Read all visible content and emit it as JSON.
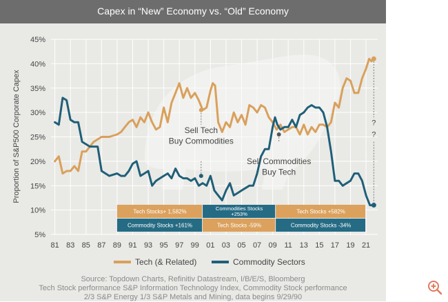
{
  "header": {
    "title": "Capex in “New” Economy vs. “Old” Economy"
  },
  "colors": {
    "tech": "#d9a05b",
    "commodity": "#1f5f78",
    "header_bg": "#6d6d6d",
    "panel_bg": "#e9e9e6",
    "grid": "#ffffff",
    "text": "#444444",
    "table_orange": "#dba15d",
    "table_teal": "#256b84"
  },
  "source_lines": [
    "Source: Topdown Charts, Refinitiv Datastream, I/B/E/S, Bloomberg",
    "Tech Stock performance S&P Information Technology Index, Commodity Stock performance",
    "2/3 S&P Energy 1/3 S&P Metals and Mining, data begins 9/29/90"
  ],
  "chart_data": {
    "type": "line",
    "title": "Capex in “New” Economy vs. “Old” Economy",
    "xlabel": "",
    "ylabel": "Proportion of S&P500 Corporate Capex",
    "xlim": [
      1980.5,
      2022.5
    ],
    "ylim": [
      5,
      45
    ],
    "x_ticks": [
      "81",
      "83",
      "85",
      "87",
      "89",
      "91",
      "93",
      "95",
      "97",
      "99",
      "01",
      "03",
      "05",
      "07",
      "09",
      "11",
      "13",
      "15",
      "17",
      "19",
      "21"
    ],
    "y_ticks": [
      "5%",
      "10%",
      "15%",
      "20%",
      "25%",
      "30%",
      "35%",
      "40%",
      "45%"
    ],
    "grid": true,
    "legend_position": "bottom",
    "series": [
      {
        "name": "Tech (& Related)",
        "color": "#d9a05b",
        "x": [
          1981,
          1981.5,
          1982,
          1982.5,
          1983,
          1983.5,
          1984,
          1984.5,
          1985,
          1985.5,
          1986,
          1987,
          1988,
          1989,
          1989.5,
          1990,
          1990.5,
          1991,
          1991.5,
          1992,
          1992.5,
          1993,
          1993.5,
          1994,
          1994.5,
          1995,
          1995.5,
          1996,
          1996.5,
          1997,
          1997.5,
          1998,
          1998.5,
          1999,
          1999.5,
          2000,
          2000.5,
          2001,
          2001.3,
          2001.6,
          2002,
          2002.5,
          2003,
          2003.5,
          2004,
          2004.5,
          2005,
          2005.5,
          2006,
          2006.5,
          2007,
          2007.5,
          2008,
          2008.5,
          2009,
          2009.5,
          2010,
          2010.5,
          2011,
          2011.5,
          2012,
          2012.5,
          2013,
          2013.5,
          2014,
          2014.5,
          2015,
          2015.5,
          2016,
          2016.5,
          2017,
          2017.5,
          2018,
          2018.5,
          2019,
          2019.5,
          2020,
          2020.5,
          2021,
          2021.4,
          2021.7,
          2022
        ],
        "y": [
          20,
          21,
          17.5,
          18,
          18,
          19,
          18,
          22,
          22,
          23,
          24,
          25,
          25,
          25.5,
          26,
          27,
          28,
          28.5,
          27,
          29,
          28,
          30,
          28,
          26.5,
          27,
          31,
          28,
          32,
          34,
          36,
          33,
          35,
          33,
          34,
          32.5,
          30.5,
          31,
          34.5,
          36,
          35.5,
          28,
          26,
          28,
          27,
          30,
          28,
          29.5,
          27.5,
          31.5,
          31,
          30,
          31.5,
          31,
          29,
          28,
          26.5,
          27.5,
          26,
          26.5,
          27,
          27,
          25.5,
          27.5,
          25.5,
          27,
          26,
          27.5,
          27.5,
          27,
          28,
          32,
          31,
          35,
          37,
          36.5,
          34,
          34,
          37,
          39,
          41,
          40.5,
          41
        ]
      },
      {
        "name": "Commodity Sectors",
        "color": "#1f5f78",
        "x": [
          1981,
          1981.5,
          1982,
          1982.5,
          1983,
          1983.5,
          1984,
          1984.5,
          1985,
          1985.5,
          1986,
          1986.5,
          1987,
          1988,
          1989,
          1989.5,
          1990,
          1990.5,
          1991,
          1991.5,
          1992,
          1992.5,
          1993,
          1993.5,
          1994,
          1994.5,
          1995,
          1995.5,
          1996,
          1996.5,
          1997,
          1997.5,
          1998,
          1998.5,
          1999,
          1999.5,
          2000,
          2000.5,
          2001,
          2001.5,
          2002,
          2002.5,
          2003,
          2003.5,
          2004,
          2004.5,
          2005,
          2005.5,
          2006,
          2006.5,
          2007,
          2007.5,
          2008,
          2008.5,
          2009,
          2009.3,
          2009.6,
          2010,
          2010.5,
          2011,
          2011.5,
          2012,
          2012.5,
          2013,
          2013.5,
          2014,
          2014.5,
          2015,
          2015.5,
          2016,
          2016.5,
          2017,
          2017.5,
          2018,
          2018.5,
          2019,
          2019.5,
          2020,
          2020.5,
          2021,
          2021.5,
          2022
        ],
        "y": [
          28,
          27.5,
          33,
          32.5,
          28.5,
          28,
          28,
          24,
          23.5,
          23,
          23,
          23,
          18,
          17,
          17.5,
          17,
          17,
          18,
          19.5,
          20,
          17,
          17.5,
          18,
          15,
          16,
          16.5,
          17,
          17.5,
          16.5,
          18.5,
          17,
          16.5,
          16.5,
          16,
          16.5,
          15,
          15.5,
          15,
          17,
          14,
          13,
          12,
          14,
          15.5,
          13,
          13.5,
          14,
          14.5,
          15,
          15,
          17.5,
          21,
          22.5,
          22.5,
          27,
          29,
          27.5,
          26.5,
          27,
          27,
          28.5,
          27,
          29.5,
          30,
          31,
          31.5,
          31,
          31,
          30,
          27,
          22,
          16,
          16,
          15,
          15.5,
          16,
          17.5,
          17.5,
          16,
          13,
          11,
          11
        ]
      }
    ],
    "annotations": [
      {
        "text": "Sell Tech Buy Commodities",
        "lines": [
          "Sell Tech",
          "Buy Commodities"
        ],
        "x": 1999.8
      },
      {
        "text": "Sell Commodities Buy Tech",
        "lines": [
          "Sell Commodities",
          "Buy Tech"
        ],
        "x": 2009.8
      },
      {
        "text": "?",
        "lines": [
          "?",
          "?"
        ],
        "x": 2022
      }
    ],
    "table": {
      "rows": [
        [
          {
            "text": "Tech Stocks+ 1,582%",
            "color": "orange",
            "from": 1989.0,
            "to": 2000.0
          },
          {
            "text": "Commodities Stocks +253%",
            "color": "teal",
            "from": 2000.0,
            "to": 2009.4
          },
          {
            "text": "Tech Stocks +582%",
            "color": "orange",
            "from": 2009.4,
            "to": 2021.0
          }
        ],
        [
          {
            "text": "Commodity Stocks +161%",
            "color": "teal",
            "from": 1989.0,
            "to": 2000.0
          },
          {
            "text": "Tech Stocks -59%",
            "color": "orange",
            "from": 2000.0,
            "to": 2009.4
          },
          {
            "text": "Commodity Stocks -34%",
            "color": "teal",
            "from": 2009.4,
            "to": 2021.0
          }
        ]
      ]
    }
  }
}
